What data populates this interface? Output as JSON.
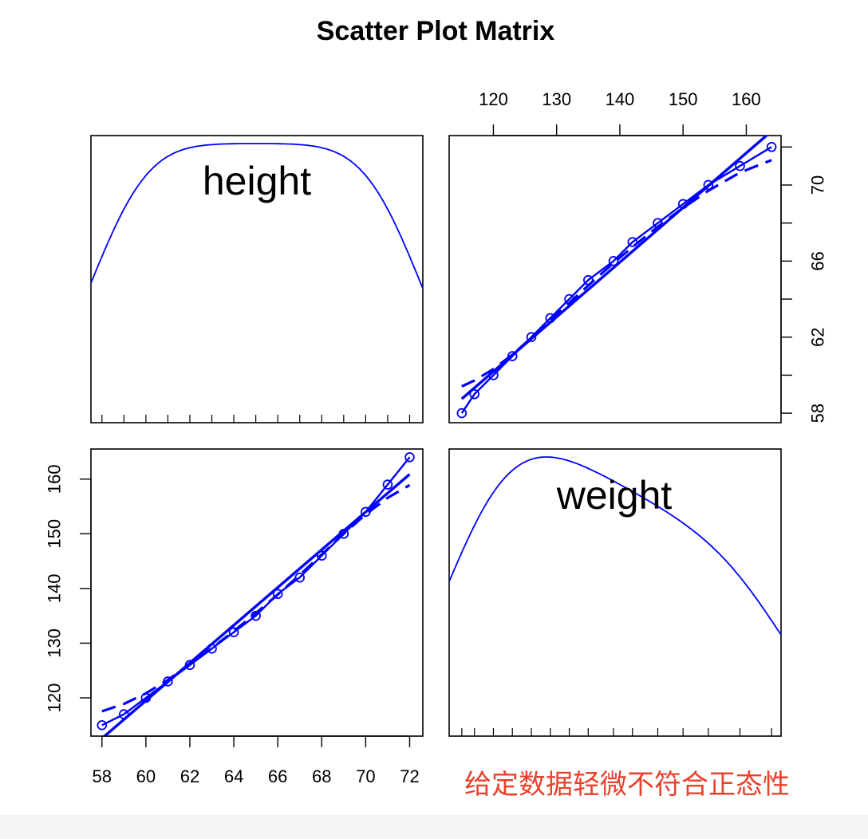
{
  "chart_data": {
    "type": "scatter-matrix",
    "title": "Scatter Plot Matrix",
    "variables": [
      "height",
      "weight"
    ],
    "height": [
      58,
      59,
      60,
      61,
      62,
      63,
      64,
      65,
      66,
      67,
      68,
      69,
      70,
      71,
      72
    ],
    "weight": [
      115,
      117,
      120,
      123,
      126,
      129,
      132,
      135,
      139,
      142,
      146,
      150,
      154,
      159,
      164
    ],
    "height_axis": {
      "range": [
        57.5,
        72.6
      ],
      "ticks": [
        "58",
        "60",
        "62",
        "64",
        "66",
        "68",
        "70",
        "72"
      ]
    },
    "weight_axis": {
      "range": [
        113,
        165.5
      ],
      "ticks": [
        "120",
        "130",
        "140",
        "150",
        "160"
      ]
    },
    "point_color": "#0000ff",
    "line_color": "#0000ff"
  },
  "caption": "给定数据轻微不符合正态性"
}
